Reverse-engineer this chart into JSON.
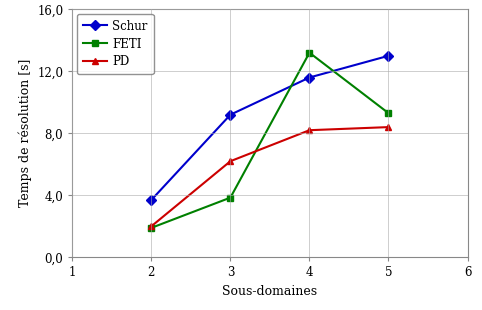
{
  "x": [
    2,
    3,
    4,
    5
  ],
  "schur": [
    3.7,
    9.2,
    11.6,
    13.0
  ],
  "feti": [
    1.9,
    3.85,
    13.2,
    9.3
  ],
  "pd": [
    2.0,
    6.2,
    8.2,
    8.4
  ],
  "schur_color": "#0000CC",
  "feti_color": "#008000",
  "pd_color": "#CC0000",
  "xlabel": "Sous-domaines",
  "ylabel": "Temps de résolution [s]",
  "xlim": [
    1,
    6
  ],
  "ylim": [
    0.0,
    16.0
  ],
  "yticks": [
    0.0,
    4.0,
    8.0,
    12.0,
    16.0
  ],
  "ytick_labels": [
    "0,0",
    "4,0",
    "8,0",
    "12,0",
    "16,0"
  ],
  "xticks": [
    1,
    2,
    3,
    4,
    5,
    6
  ],
  "xtick_labels": [
    "1",
    "2",
    "3",
    "4",
    "5",
    "6"
  ],
  "bg_color": "#ffffff",
  "grid_color": "#aaaaaa",
  "label_fontsize": 9,
  "tick_fontsize": 8.5,
  "legend_fontsize": 8.5,
  "line_width": 1.5,
  "marker_size": 5
}
